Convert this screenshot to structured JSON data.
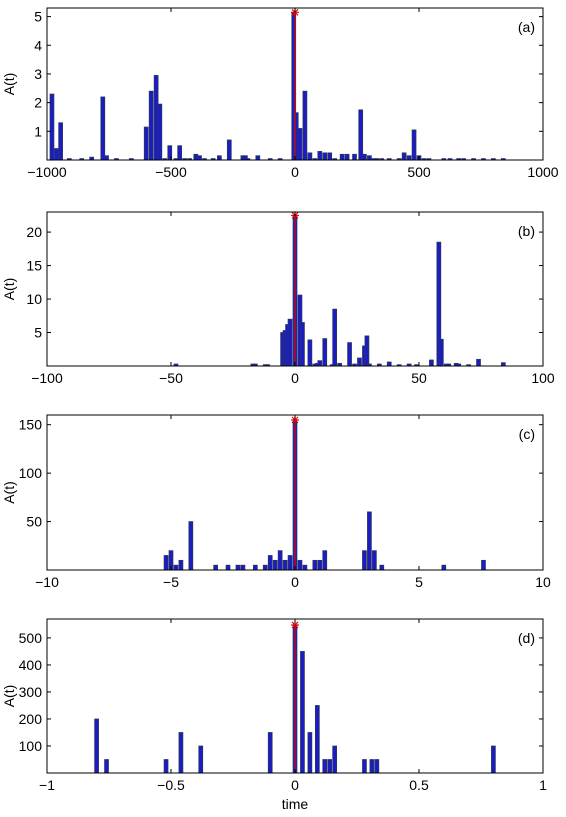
{
  "chart_data": [
    {
      "panel": "(a)",
      "type": "bar",
      "ylabel": "A(t)",
      "xlabel": "",
      "xlim": [
        -1000,
        1000
      ],
      "ylim": [
        0,
        5.3
      ],
      "xticks": [
        "-1000",
        "-500",
        "0",
        "500",
        "1000"
      ],
      "yticks": [
        "1",
        "2",
        "3",
        "4",
        "5"
      ],
      "peak": {
        "x": 0,
        "y": 5.15
      },
      "bar_width": 16,
      "x": [
        -980,
        -962,
        -945,
        -910,
        -860,
        -820,
        -775,
        -760,
        -720,
        -660,
        -600,
        -580,
        -560,
        -545,
        -525,
        -505,
        -480,
        -465,
        -445,
        -425,
        -400,
        -385,
        -365,
        -330,
        -305,
        -265,
        -210,
        -200,
        -190,
        -150,
        -100,
        -60,
        -5,
        5,
        20,
        40,
        60,
        80,
        100,
        120,
        140,
        160,
        190,
        210,
        240,
        265,
        280,
        300,
        315,
        330,
        350,
        380,
        420,
        440,
        460,
        480,
        500,
        520,
        540,
        600,
        625,
        660,
        680,
        720,
        760,
        800,
        840
      ],
      "values": [
        2.3,
        0.4,
        1.3,
        0.05,
        0.05,
        0.1,
        2.2,
        0.15,
        0.05,
        0.05,
        1.15,
        2.4,
        2.95,
        1.95,
        0.05,
        0.5,
        0.05,
        0.5,
        0.05,
        0.05,
        0.2,
        0.15,
        0.05,
        0.05,
        0.15,
        0.7,
        0.15,
        0.15,
        0.05,
        0.15,
        0.05,
        0.05,
        5.15,
        1.65,
        1.1,
        2.4,
        0.25,
        0.05,
        0.3,
        0.25,
        0.25,
        0.05,
        0.2,
        0.2,
        0.2,
        1.75,
        0.2,
        0.15,
        0.05,
        0.05,
        0.05,
        0.05,
        0.05,
        0.25,
        0.15,
        1.05,
        0.15,
        0.05,
        0.05,
        0.05,
        0.05,
        0.05,
        0.05,
        0.05,
        0.05,
        0.05,
        0.05
      ]
    },
    {
      "panel": "(b)",
      "type": "bar",
      "ylabel": "A(t)",
      "xlabel": "",
      "xlim": [
        -100,
        100
      ],
      "ylim": [
        0,
        23
      ],
      "xticks": [
        "-100",
        "-50",
        "0",
        "50",
        "100"
      ],
      "yticks": [
        "5",
        "10",
        "15",
        "20"
      ],
      "peak": {
        "x": 0,
        "y": 22.5
      },
      "bar_width": 1.6,
      "x": [
        -48,
        -17,
        -16,
        -12,
        -11,
        -5,
        -4,
        -3,
        -2,
        0,
        2,
        3,
        6,
        8,
        9,
        10,
        12,
        15,
        16,
        18,
        22,
        24,
        26,
        28,
        29,
        30,
        34,
        38,
        42,
        46,
        49,
        55,
        58,
        59,
        61,
        62,
        65,
        66,
        70,
        74,
        84
      ],
      "values": [
        0.3,
        0.3,
        0.3,
        0.2,
        0.2,
        5.0,
        5.3,
        6.2,
        7.0,
        22.5,
        10.6,
        6.5,
        3.9,
        0.3,
        0.4,
        0.8,
        4.1,
        0.2,
        8.5,
        0.4,
        3.5,
        0.3,
        1.2,
        3.0,
        4.5,
        0.3,
        0.3,
        0.6,
        0.2,
        0.3,
        0.2,
        0.9,
        18.5,
        4.0,
        0.3,
        0.3,
        0.4,
        0.3,
        0.2,
        1.0,
        0.5
      ]
    },
    {
      "panel": "(c)",
      "type": "bar",
      "ylabel": "A(t)",
      "xlabel": "",
      "xlim": [
        -10,
        10
      ],
      "ylim": [
        0,
        160
      ],
      "xticks": [
        "-10",
        "-5",
        "0",
        "5",
        "10"
      ],
      "yticks": [
        "50",
        "100",
        "150"
      ],
      "peak": {
        "x": 0,
        "y": 155
      },
      "bar_width": 0.16,
      "x": [
        -5.2,
        -5.0,
        -4.8,
        -4.6,
        -4.2,
        -3.2,
        -2.7,
        -2.3,
        -2.1,
        -1.6,
        -1.2,
        -1.0,
        -0.8,
        -0.6,
        -0.4,
        -0.2,
        0,
        0.2,
        0.4,
        0.8,
        1.0,
        1.2,
        2.8,
        3.0,
        3.2,
        3.5,
        6.0,
        7.6
      ],
      "values": [
        15,
        20,
        5,
        10,
        50,
        5,
        5,
        5,
        5,
        5,
        5,
        15,
        10,
        20,
        10,
        15,
        155,
        10,
        5,
        10,
        10,
        20,
        20,
        60,
        20,
        5,
        5,
        10
      ]
    },
    {
      "panel": "(d)",
      "type": "bar",
      "ylabel": "A(t)",
      "xlabel": "time",
      "xlim": [
        -1,
        1
      ],
      "ylim": [
        0,
        570
      ],
      "xticks": [
        "-1",
        "-0.5",
        "0",
        "0.5",
        "1"
      ],
      "yticks": [
        "100",
        "200",
        "300",
        "400",
        "500"
      ],
      "peak": {
        "x": 0,
        "y": 548
      },
      "bar_width": 0.016,
      "x": [
        -0.8,
        -0.76,
        -0.52,
        -0.46,
        -0.38,
        -0.1,
        0,
        0.03,
        0.06,
        0.09,
        0.12,
        0.14,
        0.16,
        0.28,
        0.31,
        0.33,
        0.8
      ],
      "values": [
        200,
        50,
        50,
        150,
        100,
        150,
        548,
        450,
        150,
        250,
        50,
        50,
        100,
        50,
        50,
        50,
        100
      ]
    }
  ]
}
